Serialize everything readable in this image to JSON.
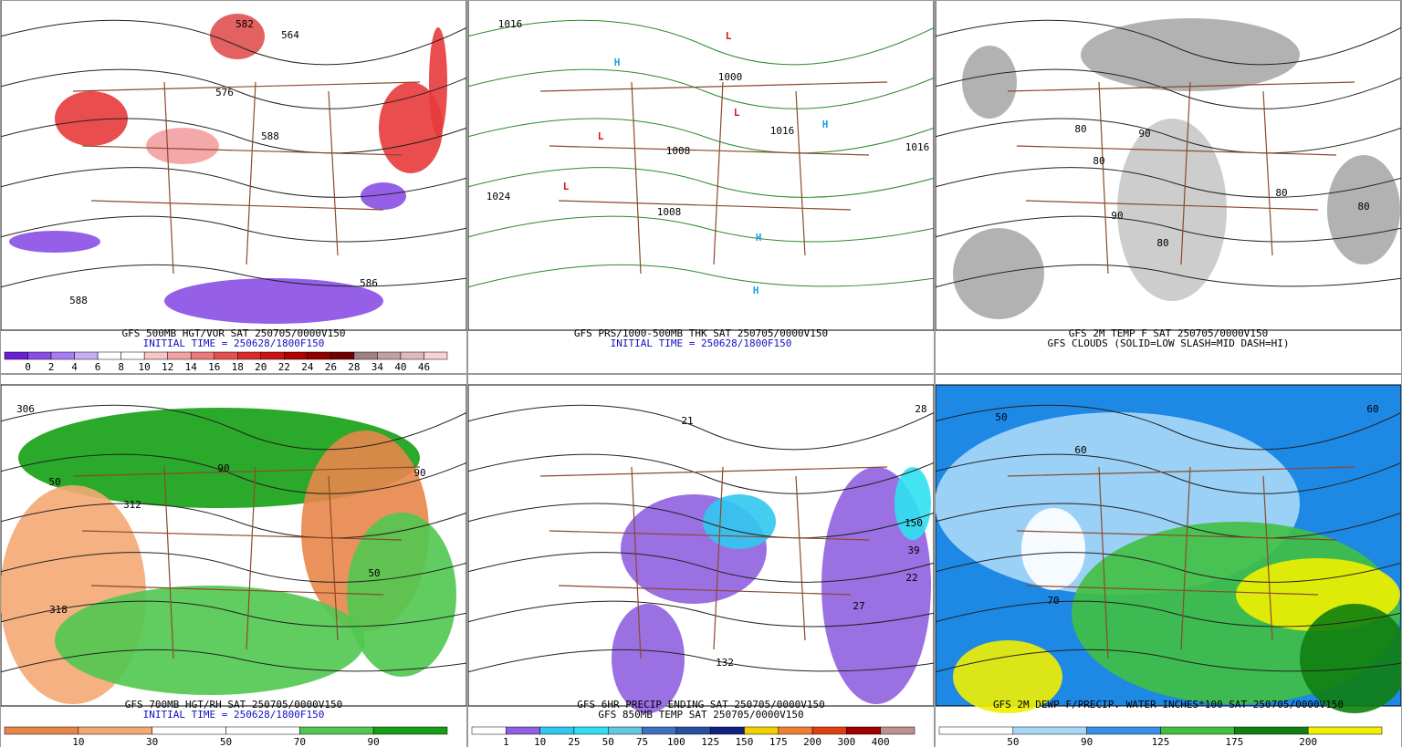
{
  "panels": [
    {
      "captions": [
        "GFS 500MB HGT/VOR SAT 250705/0000V150",
        "INITIAL TIME = 250628/1800F150"
      ],
      "map_labels": [
        "582",
        "564",
        "576",
        "588",
        "586",
        "588"
      ],
      "colorbar": {
        "labels": [
          "0",
          "2",
          "4",
          "6",
          "8",
          "10",
          "12",
          "14",
          "16",
          "18",
          "20",
          "22",
          "24",
          "26",
          "28",
          "34",
          "40",
          "46"
        ],
        "colors": [
          "#6a1fd6",
          "#8a4ee6",
          "#a97ef0",
          "#c7aef5",
          "#ffffff",
          "#ffffff",
          "#f7c5c5",
          "#f2a0a0",
          "#ec7a7a",
          "#e65050",
          "#dc2a2a",
          "#c81414",
          "#b00000",
          "#900000",
          "#700000",
          "#a08080",
          "#c0a0a0",
          "#e0b8c0",
          "#f8d0d8"
        ]
      }
    },
    {
      "captions": [
        "GFS PRS/1000-500MB THK SAT 250705/0000V150",
        "INITIAL TIME = 250628/1800F150"
      ],
      "map_labels": [
        "1016",
        "1024",
        "1000",
        "1008",
        "1008",
        "1016",
        "1016",
        "H",
        "H",
        "H",
        "H",
        "L",
        "L",
        "L",
        "L"
      ]
    },
    {
      "captions": [
        "GFS 2M TEMP F SAT 250705/0000V150",
        "GFS CLOUDS (SOLID=LOW SLASH=MID DASH=HI)"
      ],
      "map_labels": [
        "80",
        "80",
        "90",
        "90",
        "80",
        "80",
        "80"
      ]
    },
    {
      "captions": [
        "GFS 700MB HGT/RH SAT 250705/0000V150",
        "INITIAL TIME = 250628/1800F150"
      ],
      "map_labels": [
        "306",
        "312",
        "318",
        "90",
        "50",
        "90",
        "50"
      ],
      "colorbar": {
        "labels": [
          "10",
          "30",
          "50",
          "70",
          "90"
        ],
        "colors": [
          "#e8864a",
          "#f4a874",
          "#ffffff",
          "#ffffff",
          "#50c850",
          "#14a014"
        ]
      }
    },
    {
      "captions": [
        "GFS 6HR PRECIP ENDING SAT 250705/0000V150",
        "GFS 850MB TEMP SAT 250705/0000V150"
      ],
      "map_labels": [
        "132",
        "150",
        "27",
        "22",
        "39",
        "28",
        "21"
      ],
      "colorbar": {
        "labels": [
          "1",
          "10",
          "25",
          "50",
          "75",
          "100",
          "125",
          "150",
          "175",
          "200",
          "300",
          "400"
        ],
        "colors": [
          "#ffffff",
          "#9060e0",
          "#30c8f0",
          "#30e0f0",
          "#60c8e0",
          "#4070c0",
          "#2850a0",
          "#102080",
          "#f0d000",
          "#f08030",
          "#e04010",
          "#a00000",
          "#c09090"
        ]
      }
    },
    {
      "captions": [
        "GFS 2M DEWP F/PRECIP. WATER INCHES*100 SAT 250705/0000V150"
      ],
      "map_labels": [
        "50",
        "60",
        "70",
        "60"
      ],
      "colorbar": {
        "labels": [
          "50",
          "90",
          "125",
          "175",
          "200"
        ],
        "colors": [
          "#ffffff",
          "#a8d8f8",
          "#3890e8",
          "#40c040",
          "#108010",
          "#f0f000"
        ]
      }
    }
  ]
}
